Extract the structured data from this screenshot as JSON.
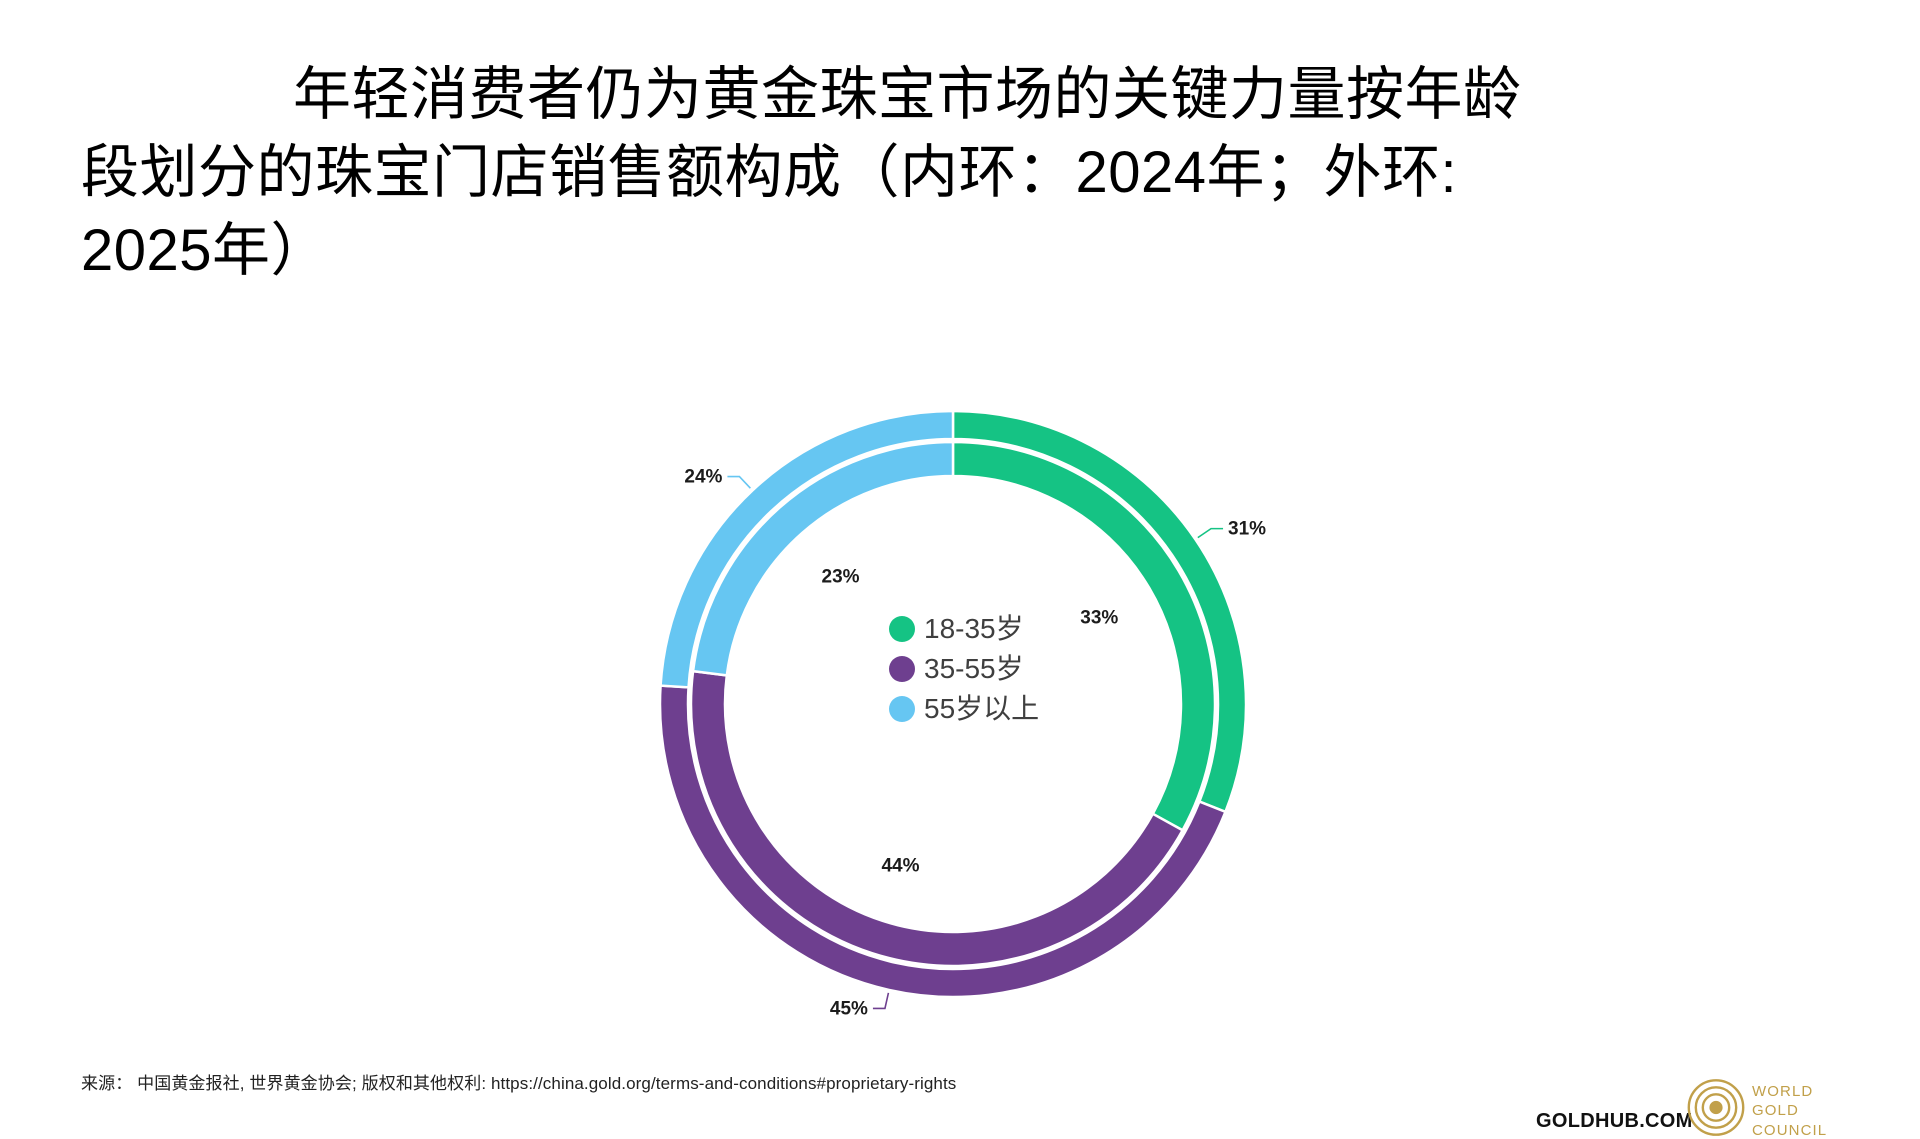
{
  "title": {
    "lines": [
      "年轻消费者仍为黄金珠宝市场的关键力量按年龄",
      "段划分的珠宝门店销售额构成（内环：2024年；外环:",
      "2025年）"
    ],
    "full": "年轻消费者仍为黄金珠宝市场的关键力量按年龄段划分的珠宝门店销售额构成（内环：2024年；外环: 2025年）"
  },
  "chart_data": {
    "type": "pie",
    "subtype": "double-ring-donut",
    "title": "按年龄段划分的珠宝门店销售额构成",
    "ring_note_inner": "内环: 2024年",
    "ring_note_outer": "外环: 2025年",
    "categories": [
      "18-35岁",
      "35-55岁",
      "55岁以上"
    ],
    "colors": [
      "#15C384",
      "#6E3F8F",
      "#66C6F2"
    ],
    "series": [
      {
        "name": "2024年",
        "ring": "inner",
        "values": [
          33,
          44,
          23
        ],
        "labels": [
          "33%",
          "44%",
          "23%"
        ]
      },
      {
        "name": "2025年",
        "ring": "outer",
        "values": [
          31,
          45,
          24
        ],
        "labels": [
          "31%",
          "45%",
          "24%"
        ]
      }
    ],
    "units": "%",
    "legend_position": "center"
  },
  "legend": {
    "items": [
      {
        "label": "18-35岁",
        "color": "#15C384"
      },
      {
        "label": "35-55岁",
        "color": "#6E3F8F"
      },
      {
        "label": "55岁以上",
        "color": "#66C6F2"
      }
    ]
  },
  "source_line": "来源： 中国黄金报社, 世界黄金协会; 版权和其他权利: https://china.gold.org/terms-and-conditions#proprietary-rights",
  "footer": {
    "goldhub": "GOLDHUB.COM",
    "wgc": {
      "lines": [
        "WORLD",
        "GOLD",
        "COUNCIL"
      ],
      "color": "#C1A04A"
    }
  }
}
